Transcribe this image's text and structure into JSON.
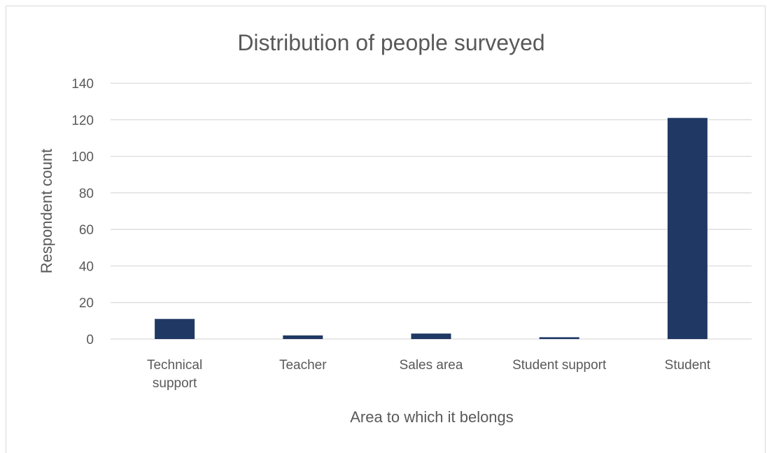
{
  "chart_data": {
    "type": "bar",
    "title": "Distribution of people surveyed",
    "xlabel": "Area to which it belongs",
    "ylabel": "Respondent count",
    "categories": [
      [
        "Technical",
        "support"
      ],
      [
        "Teacher"
      ],
      [
        "Sales area"
      ],
      [
        "Student support"
      ],
      [
        "Student"
      ]
    ],
    "values": [
      11,
      2,
      3,
      1,
      121
    ],
    "ylim": [
      0,
      140
    ],
    "yticks": [
      "0",
      "20",
      "40",
      "60",
      "80",
      "100",
      "120",
      "140"
    ],
    "grid": true,
    "legend": "none",
    "bar_color": "#203864"
  }
}
